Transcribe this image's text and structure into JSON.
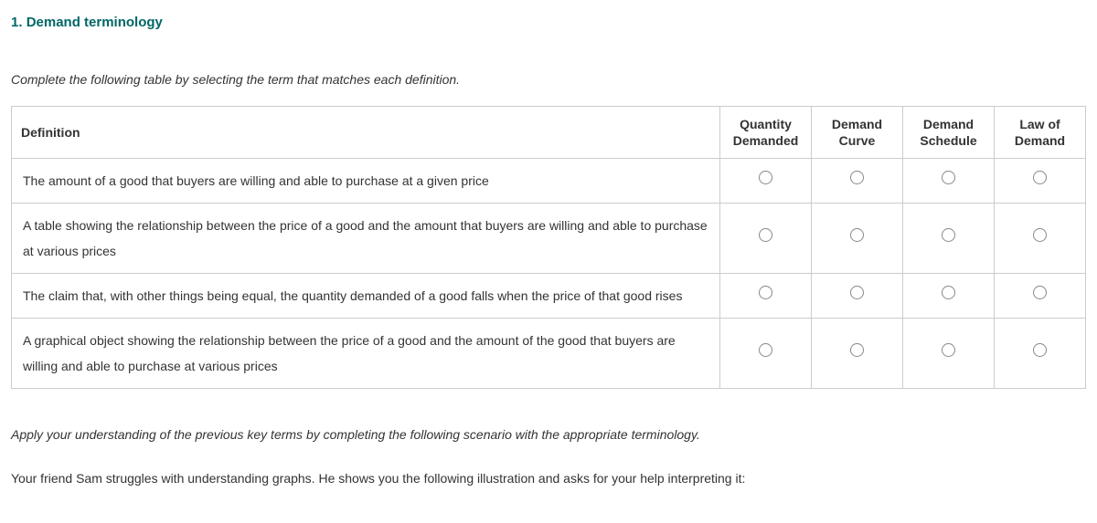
{
  "question": {
    "number": "1.",
    "title": "Demand terminology"
  },
  "instruction": "Complete the following table by selecting the term that matches each definition.",
  "table": {
    "definition_header": "Definition",
    "options": [
      {
        "line1": "Quantity",
        "line2": "Demanded"
      },
      {
        "line1": "Demand",
        "line2": "Curve"
      },
      {
        "line1": "Demand",
        "line2": "Schedule"
      },
      {
        "line1": "Law of",
        "line2": "Demand"
      }
    ],
    "rows": [
      {
        "definition": "The amount of a good that buyers are willing and able to purchase at a given price"
      },
      {
        "definition": "A table showing the relationship between the price of a good and the amount that buyers are willing and able to purchase at various prices"
      },
      {
        "definition": "The claim that, with other things being equal, the quantity demanded of a good falls when the price of that good rises"
      },
      {
        "definition": "A graphical object showing the relationship between the price of a good and the amount of the good that buyers are willing and able to purchase at various prices"
      }
    ]
  },
  "scenario": {
    "instruction": "Apply your understanding of the previous key terms by completing the following scenario with the appropriate terminology.",
    "text": "Your friend Sam struggles with understanding graphs. He shows you the following illustration and asks for your help interpreting it:"
  },
  "colors": {
    "heading": "#006666",
    "border": "#cccccc",
    "text": "#333333",
    "radio_border": "#888888",
    "background": "#ffffff"
  }
}
